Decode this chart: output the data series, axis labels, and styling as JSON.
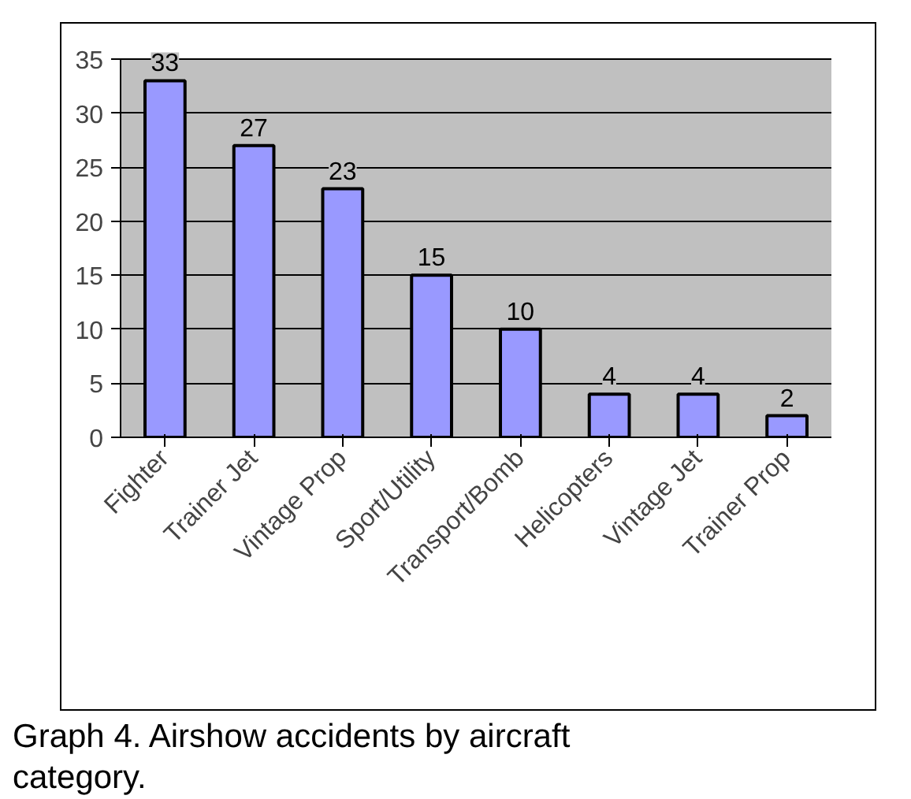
{
  "chart_data": {
    "type": "bar",
    "categories": [
      "Fighter",
      "Trainer Jet",
      "Vintage Prop",
      "Sport/Utility",
      "Transport/Bomb",
      "Helicopters",
      "Vintage Jet",
      "Trainer Prop"
    ],
    "values": [
      33,
      27,
      23,
      15,
      10,
      4,
      4,
      2
    ],
    "color": "#9999ff",
    "ylim": [
      0,
      35
    ],
    "yticks": [
      0,
      5,
      10,
      15,
      20,
      25,
      30,
      35
    ],
    "grid": "y",
    "data_labels": true,
    "annotations": [
      "Graph 4. Airshow accidents by aircraft category."
    ]
  }
}
